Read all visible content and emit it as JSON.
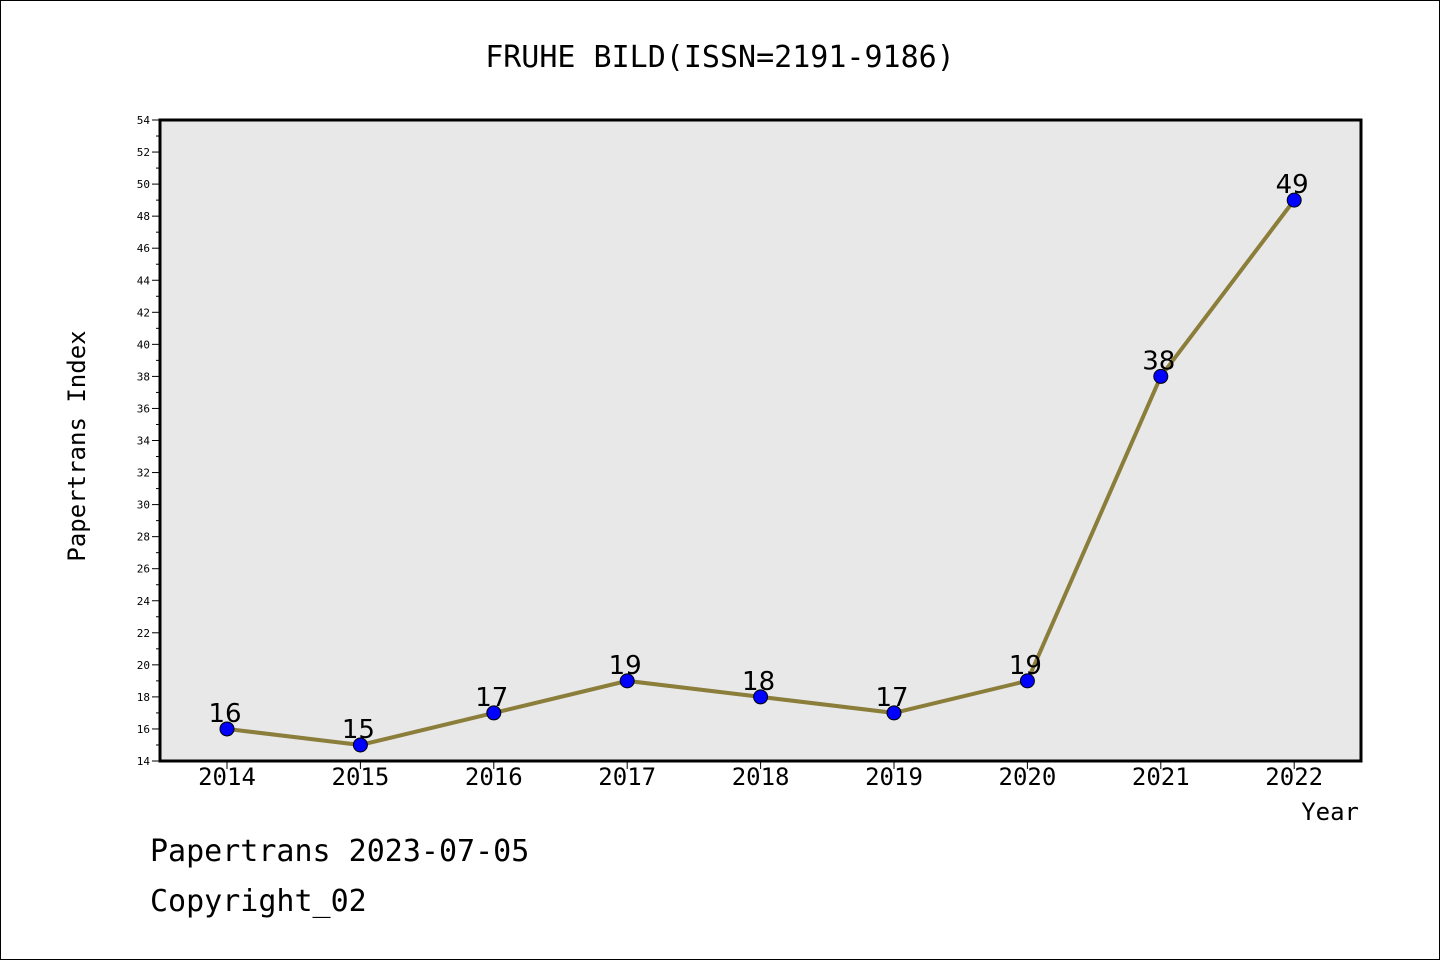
{
  "chart_data": {
    "type": "line",
    "title": "FRUHE BILD(ISSN=2191-9186)",
    "xlabel": "Year",
    "ylabel": "Papertrans Index",
    "categories": [
      "2014",
      "2015",
      "2016",
      "2017",
      "2018",
      "2019",
      "2020",
      "2021",
      "2022"
    ],
    "series": [
      {
        "values": [
          16,
          15,
          17,
          19,
          18,
          17,
          19,
          38,
          49
        ],
        "line_color": "#8b7d3a",
        "marker_color": "#0000ff"
      }
    ],
    "data_labels": [
      "16",
      "15",
      "17",
      "19",
      "18",
      "17",
      "19",
      "38",
      "49"
    ],
    "ylim": [
      14,
      54
    ],
    "yticks": [
      "14",
      "16",
      "18",
      "20",
      "22",
      "24",
      "26",
      "28",
      "30",
      "32",
      "34",
      "36",
      "38",
      "40",
      "42",
      "44",
      "46",
      "48",
      "50",
      "52",
      "54"
    ],
    "grid": false,
    "plot_background": "#e8e8e8"
  },
  "footer": {
    "line1": "Papertrans 2023-07-05",
    "line2": "Copyright_02"
  }
}
